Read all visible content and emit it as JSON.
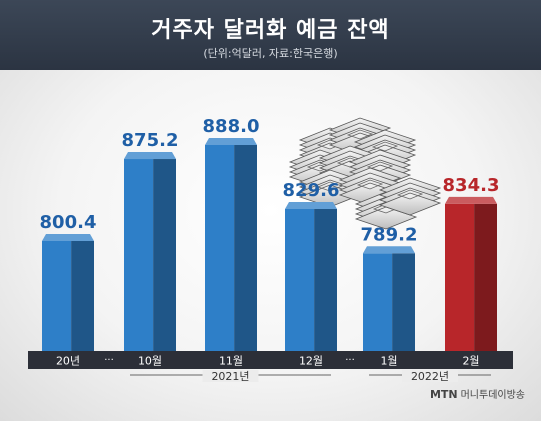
{
  "header": {
    "title": "거주자 달러화 예금 잔액",
    "subtitle": "(단위:억달러, 자료:한국은행)"
  },
  "source": {
    "brand": "MTN",
    "name": "머니투데이방송"
  },
  "colors": {
    "bar": "#2e7fc8",
    "bar_highlight": "#b8262a",
    "axis_band": "#2c2f38"
  },
  "chart_data": {
    "type": "bar",
    "title": "거주자 달러화 예금 잔액",
    "unit": "억달러",
    "categories": [
      "20년",
      "10월",
      "11월",
      "12월",
      "1월",
      "2월"
    ],
    "values": [
      800.4,
      875.2,
      888.0,
      829.6,
      789.2,
      834.3
    ],
    "labels": [
      "800.4",
      "875.2",
      "888.0",
      "829.6",
      "789.2",
      "834.3"
    ],
    "highlight_index": 5,
    "ellipsis_after": [
      0,
      3
    ],
    "ellipsis_text": "···",
    "groups": [
      {
        "label": "2021년",
        "from": 1,
        "to": 3
      },
      {
        "label": "2022년",
        "from": 4,
        "to": 5
      }
    ],
    "ylim": [
      700,
      900
    ]
  }
}
